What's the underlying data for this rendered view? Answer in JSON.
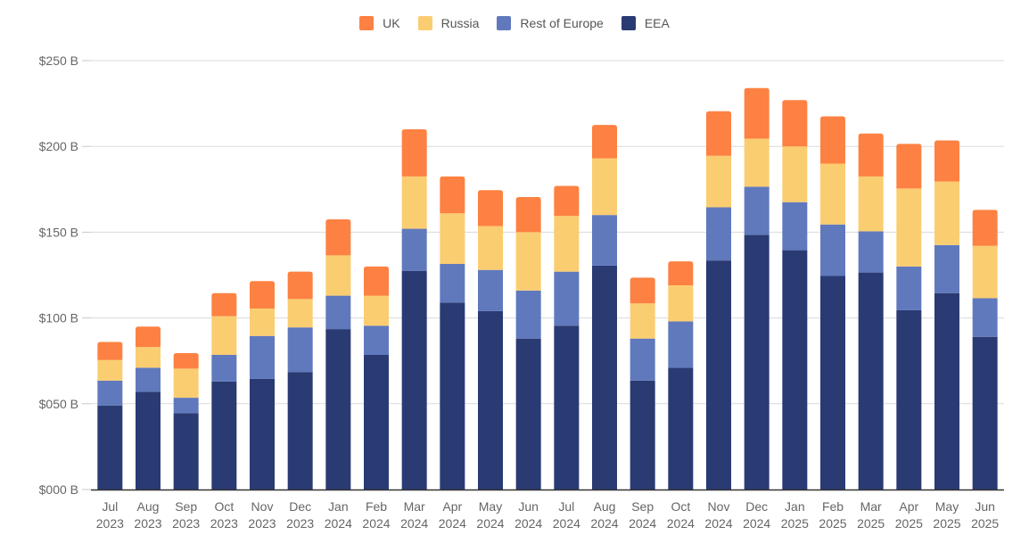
{
  "chart_data": {
    "type": "bar",
    "stacked": true,
    "title": "",
    "xlabel": "",
    "ylabel": "",
    "ylim": [
      0,
      250
    ],
    "yticks": [
      0,
      50,
      100,
      150,
      200,
      250
    ],
    "ytick_labels": [
      "$000 B",
      "$050 B",
      "$100 B",
      "$150 B",
      "$200 B",
      "$250 B"
    ],
    "grid": true,
    "legend_position": "top-center",
    "categories": [
      [
        "Jul",
        "2023"
      ],
      [
        "Aug",
        "2023"
      ],
      [
        "Sep",
        "2023"
      ],
      [
        "Oct",
        "2023"
      ],
      [
        "Nov",
        "2023"
      ],
      [
        "Dec",
        "2023"
      ],
      [
        "Jan",
        "2024"
      ],
      [
        "Feb",
        "2024"
      ],
      [
        "Mar",
        "2024"
      ],
      [
        "Apr",
        "2024"
      ],
      [
        "May",
        "2024"
      ],
      [
        "Jun",
        "2024"
      ],
      [
        "Jul",
        "2024"
      ],
      [
        "Aug",
        "2024"
      ],
      [
        "Sep",
        "2024"
      ],
      [
        "Oct",
        "2024"
      ],
      [
        "Nov",
        "2024"
      ],
      [
        "Dec",
        "2024"
      ],
      [
        "Jan",
        "2025"
      ],
      [
        "Feb",
        "2025"
      ],
      [
        "Mar",
        "2025"
      ],
      [
        "Apr",
        "2025"
      ],
      [
        "May",
        "2025"
      ],
      [
        "Jun",
        "2025"
      ]
    ],
    "series": [
      {
        "name": "EEA",
        "color": "#2a3a73",
        "values": [
          49,
          57,
          44.5,
          63,
          64.5,
          68.5,
          93.5,
          78.5,
          127.5,
          109,
          104,
          88,
          95.5,
          130.5,
          63.5,
          71,
          133.5,
          148.5,
          139.5,
          124.5,
          126.5,
          104.5,
          114.5,
          89
        ]
      },
      {
        "name": "Rest of Europe",
        "color": "#6079bd",
        "values": [
          14.5,
          14,
          9,
          15.5,
          25,
          26,
          19.5,
          17,
          24.5,
          22.5,
          24,
          28,
          31.5,
          29.5,
          24.5,
          27,
          31,
          28,
          28,
          30,
          24,
          25.5,
          28,
          22.5
        ]
      },
      {
        "name": "Russia",
        "color": "#fbcd71",
        "values": [
          12,
          12,
          17,
          22.5,
          16,
          16.5,
          23.5,
          17.5,
          30.5,
          29.5,
          25.5,
          34,
          32.5,
          33,
          20.5,
          21,
          30,
          28,
          32.5,
          35.5,
          32,
          45.5,
          37,
          30.5
        ]
      },
      {
        "name": "UK",
        "color": "#fd8142",
        "values": [
          10.5,
          12,
          9,
          13.5,
          16,
          16,
          21,
          17,
          27.5,
          21.5,
          21,
          20.5,
          17.5,
          19.5,
          15,
          14,
          26,
          29.5,
          27,
          27.5,
          25,
          26,
          24,
          21
        ]
      }
    ],
    "legend_order": [
      "UK",
      "Russia",
      "Rest of Europe",
      "EEA"
    ]
  }
}
